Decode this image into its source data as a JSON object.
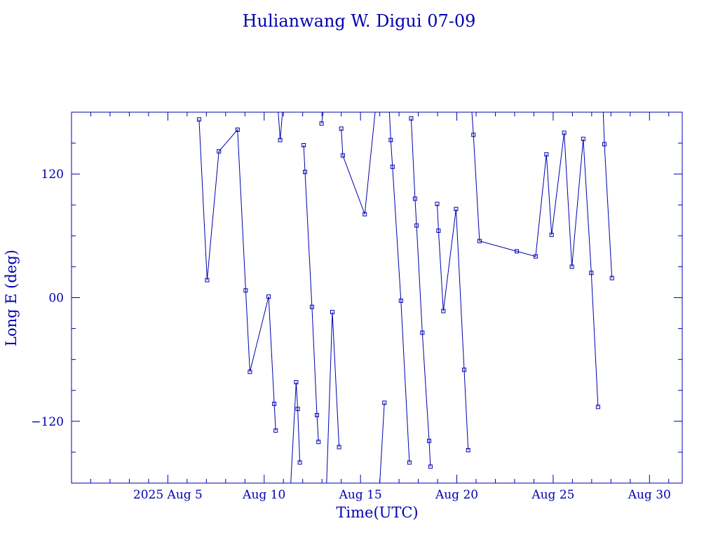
{
  "chart_data": {
    "type": "line",
    "title": "Hulianwang W. Digui 07-09",
    "xlabel": "Time(UTC)",
    "ylabel": "Long E (deg)",
    "x_tick_labels": [
      {
        "label": "2025 Aug  5",
        "x": 5
      },
      {
        "label": "Aug 10",
        "x": 10
      },
      {
        "label": "Aug 15",
        "x": 15
      },
      {
        "label": "Aug 20",
        "x": 20
      },
      {
        "label": "Aug 25",
        "x": 25
      },
      {
        "label": "Aug 30",
        "x": 30
      }
    ],
    "y_tick_labels": [
      {
        "label": "120",
        "y": 120
      },
      {
        "label": "00",
        "y": 0
      },
      {
        "label": "−120",
        "y": -120
      }
    ],
    "xlim": [
      0,
      31.7
    ],
    "ylim": [
      -180,
      180
    ],
    "x_units": "days from 2025 Aug 0 (UTC)",
    "color": "#0000b0",
    "grid": false,
    "series": [
      {
        "points": [
          [
            6.62,
            173
          ],
          [
            7.04,
            17
          ],
          [
            7.65,
            142
          ],
          [
            8.62,
            163
          ],
          [
            9.04,
            7
          ],
          [
            9.26,
            -72
          ],
          [
            10.23,
            1
          ],
          [
            10.52,
            -103
          ],
          [
            10.6,
            -129
          ],
          [
            10.72,
            180
          ],
          [
            10.73,
            180
          ],
          [
            10.83,
            153
          ],
          [
            10.95,
            180
          ],
          [
            11.38,
            -180
          ],
          [
            11.66,
            -82
          ],
          [
            11.74,
            -108
          ],
          [
            11.85,
            -160
          ],
          [
            12.05,
            148
          ],
          [
            12.12,
            122
          ],
          [
            12.48,
            -9
          ],
          [
            12.74,
            -114
          ],
          [
            12.82,
            -140
          ],
          [
            12.98,
            169
          ],
          [
            13.06,
            180
          ],
          [
            13.24,
            -180
          ],
          [
            13.54,
            -14
          ],
          [
            13.89,
            -145
          ],
          [
            14.0,
            164
          ],
          [
            14.08,
            138
          ],
          [
            15.22,
            81
          ],
          [
            15.76,
            180
          ],
          [
            16.0,
            -180
          ],
          [
            16.24,
            -102
          ],
          [
            16.48,
            180
          ],
          [
            16.5,
            180
          ],
          [
            16.57,
            153
          ],
          [
            16.66,
            127
          ],
          [
            17.1,
            -3
          ],
          [
            17.54,
            -160
          ],
          [
            17.63,
            174
          ],
          [
            17.83,
            96
          ],
          [
            17.91,
            70
          ],
          [
            18.21,
            -34
          ],
          [
            18.56,
            -139
          ],
          [
            18.63,
            -164
          ],
          [
            18.98,
            91
          ],
          [
            19.05,
            65
          ],
          [
            19.3,
            -13
          ],
          [
            19.96,
            86
          ],
          [
            20.38,
            -70
          ],
          [
            20.59,
            -148
          ],
          [
            20.73,
            180
          ],
          [
            20.78,
            180
          ],
          [
            20.86,
            158
          ],
          [
            21.18,
            55
          ],
          [
            23.11,
            45
          ],
          [
            24.09,
            40
          ],
          [
            24.65,
            139
          ],
          [
            24.92,
            61
          ],
          [
            25.57,
            160
          ],
          [
            25.97,
            30
          ],
          [
            26.56,
            154
          ],
          [
            26.98,
            24
          ],
          [
            27.33,
            -106
          ],
          [
            27.53,
            180
          ],
          [
            27.6,
            180
          ],
          [
            27.66,
            149
          ],
          [
            28.05,
            19
          ]
        ]
      }
    ]
  }
}
